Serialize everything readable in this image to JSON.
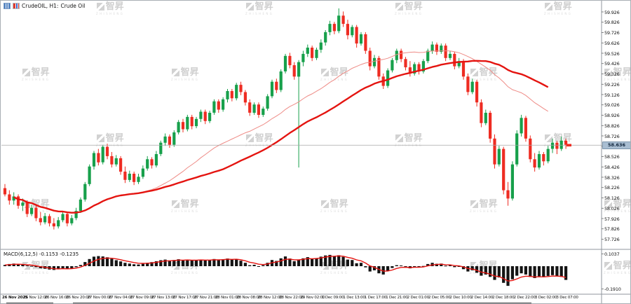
{
  "window": {
    "symbol_period": "CrudeOIL, H1:",
    "description": "Crude Oil"
  },
  "watermark": {
    "cn": "智昇",
    "en": "ZHISHENG"
  },
  "colors": {
    "bull": "#17a04b",
    "bear": "#ee2c22",
    "ma_slow": "#e41410",
    "ma_fast": "#ee8b86",
    "hist": "#141414",
    "signal": "#e41410",
    "price_line": "#a6a6a6",
    "tag_bg": "#a9bed2",
    "tag_border": "#7e97ad",
    "tag_text": "#11263d",
    "axis_text": "#111111",
    "frame": "#8f969c"
  },
  "price_axis": {
    "current": "58.636"
  },
  "macd_panel": {
    "label": "MACD(6,12,5) -0.1153 -0.1235",
    "axis_top": "0.1037",
    "axis_bottom": "-0.1910"
  },
  "chart_data": [
    {
      "type": "candlestick",
      "symbol": "CrudeOIL",
      "timeframe": "H1",
      "description": "Crude Oil",
      "last_price": "58.636",
      "ylim": [
        57.6,
        59.97
      ],
      "grid": false,
      "ma_fast_period": 30,
      "ma_slow_period": 50,
      "y_ticks": [
        "59.926",
        "59.826",
        "59.726",
        "59.626",
        "59.526",
        "59.426",
        "59.326",
        "59.226",
        "59.126",
        "59.026",
        "58.926",
        "58.826",
        "58.726",
        "58.626",
        "58.526",
        "58.426",
        "58.326",
        "58.226",
        "58.126",
        "58.026",
        "57.926",
        "57.826",
        "57.726"
      ],
      "x_ticks": [
        "26 Nov 2025",
        "26 Nov 12:00",
        "26 Nov 16:00",
        "26 Nov 20:00",
        "27 Nov 00:00",
        "27 Nov 04:00",
        "27 Nov 09:00",
        "27 Nov 13:00",
        "27 Nov 17:00",
        "27 Nov 21:00",
        "28 Nov 01:00",
        "28 Nov 08:00",
        "28 Nov 12:00",
        "28 Nov 22:00",
        "29 Nov 02:00",
        "1 Dec 09:00",
        "1 Dec 13:00",
        "1 Dec 17:00",
        "1 Dec 21:00",
        "2 Dec 01:00",
        "2 Dec 05:00",
        "2 Dec 10:00",
        "2 Dec 14:00",
        "2 Dec 18:00",
        "2 Dec 22:00",
        "3 Dec 02:00",
        "3 Dec 07:00"
      ],
      "candles": [
        [
          58.22,
          58.26,
          58.14,
          58.16
        ],
        [
          58.16,
          58.2,
          58.06,
          58.1
        ],
        [
          58.1,
          58.18,
          58.06,
          58.14
        ],
        [
          58.14,
          58.16,
          58.02,
          58.05
        ],
        [
          58.05,
          58.12,
          58.0,
          58.08
        ],
        [
          58.08,
          58.1,
          57.94,
          57.97
        ],
        [
          57.97,
          58.06,
          57.95,
          58.03
        ],
        [
          58.03,
          58.05,
          57.9,
          57.93
        ],
        [
          57.93,
          57.99,
          57.86,
          57.89
        ],
        [
          57.89,
          57.98,
          57.87,
          57.95
        ],
        [
          57.95,
          57.97,
          57.85,
          57.88
        ],
        [
          57.88,
          57.93,
          57.82,
          57.85
        ],
        [
          57.85,
          57.94,
          57.83,
          57.91
        ],
        [
          57.91,
          58.0,
          57.89,
          57.97
        ],
        [
          57.97,
          57.99,
          57.85,
          57.88
        ],
        [
          57.88,
          57.96,
          57.86,
          57.93
        ],
        [
          57.93,
          58.03,
          57.91,
          58.0
        ],
        [
          58.0,
          58.13,
          57.98,
          58.11
        ],
        [
          58.11,
          58.28,
          58.09,
          58.26
        ],
        [
          58.26,
          58.45,
          58.24,
          58.43
        ],
        [
          58.43,
          58.58,
          58.4,
          58.56
        ],
        [
          58.56,
          58.6,
          58.44,
          58.47
        ],
        [
          58.47,
          58.64,
          58.45,
          58.62
        ],
        [
          58.62,
          58.65,
          58.5,
          58.53
        ],
        [
          58.53,
          58.57,
          58.42,
          58.45
        ],
        [
          58.45,
          58.54,
          58.43,
          58.51
        ],
        [
          58.51,
          58.53,
          58.35,
          58.38
        ],
        [
          58.38,
          58.43,
          58.27,
          58.3
        ],
        [
          58.3,
          58.39,
          58.28,
          58.36
        ],
        [
          58.36,
          58.38,
          58.25,
          58.28
        ],
        [
          58.28,
          58.36,
          58.26,
          58.33
        ],
        [
          58.33,
          58.44,
          58.31,
          58.41
        ],
        [
          58.41,
          58.53,
          58.39,
          58.5
        ],
        [
          58.5,
          58.52,
          58.41,
          58.44
        ],
        [
          58.44,
          58.58,
          58.42,
          58.55
        ],
        [
          58.55,
          58.68,
          58.53,
          58.66
        ],
        [
          58.66,
          58.75,
          58.63,
          58.72
        ],
        [
          58.72,
          58.74,
          58.61,
          58.64
        ],
        [
          58.64,
          58.78,
          58.62,
          58.76
        ],
        [
          58.76,
          58.88,
          58.74,
          58.86
        ],
        [
          58.86,
          58.89,
          58.76,
          58.79
        ],
        [
          58.79,
          58.93,
          58.77,
          58.91
        ],
        [
          58.91,
          58.93,
          58.79,
          58.82
        ],
        [
          58.82,
          58.91,
          58.8,
          58.89
        ],
        [
          58.89,
          58.98,
          58.86,
          58.96
        ],
        [
          58.96,
          58.98,
          58.84,
          58.87
        ],
        [
          58.87,
          58.97,
          58.85,
          58.95
        ],
        [
          58.95,
          59.08,
          58.93,
          59.06
        ],
        [
          59.06,
          59.08,
          58.95,
          58.98
        ],
        [
          58.98,
          59.1,
          58.96,
          59.08
        ],
        [
          59.08,
          59.18,
          59.05,
          59.16
        ],
        [
          59.16,
          59.18,
          59.06,
          59.09
        ],
        [
          59.09,
          59.24,
          59.07,
          59.22
        ],
        [
          59.22,
          59.25,
          59.12,
          59.15
        ],
        [
          59.15,
          59.17,
          59.02,
          59.05
        ],
        [
          59.05,
          59.08,
          58.92,
          58.95
        ],
        [
          58.95,
          59.05,
          58.93,
          59.03
        ],
        [
          59.03,
          59.05,
          58.9,
          58.93
        ],
        [
          58.93,
          59.01,
          58.91,
          58.99
        ],
        [
          58.99,
          59.13,
          58.97,
          59.11
        ],
        [
          59.11,
          59.27,
          59.09,
          59.25
        ],
        [
          59.25,
          59.28,
          59.14,
          59.17
        ],
        [
          59.17,
          59.37,
          59.15,
          59.35
        ],
        [
          59.35,
          59.52,
          59.33,
          59.5
        ],
        [
          59.5,
          59.53,
          59.38,
          59.41
        ],
        [
          59.41,
          59.44,
          59.27,
          59.3
        ],
        [
          59.3,
          59.46,
          58.42,
          59.44
        ],
        [
          59.44,
          59.55,
          59.4,
          59.52
        ],
        [
          59.52,
          59.61,
          59.49,
          59.58
        ],
        [
          59.58,
          59.6,
          59.45,
          59.48
        ],
        [
          59.48,
          59.58,
          59.46,
          59.56
        ],
        [
          59.56,
          59.66,
          59.53,
          59.63
        ],
        [
          59.63,
          59.75,
          59.6,
          59.73
        ],
        [
          59.73,
          59.84,
          59.7,
          59.81
        ],
        [
          59.81,
          59.83,
          59.71,
          59.74
        ],
        [
          59.74,
          59.96,
          59.72,
          59.89
        ],
        [
          59.89,
          59.93,
          59.78,
          59.81
        ],
        [
          59.81,
          59.85,
          59.66,
          59.7
        ],
        [
          59.7,
          59.8,
          59.68,
          59.78
        ],
        [
          59.78,
          59.8,
          59.58,
          59.62
        ],
        [
          59.62,
          59.73,
          59.6,
          59.71
        ],
        [
          59.71,
          59.73,
          59.52,
          59.55
        ],
        [
          59.55,
          59.58,
          59.36,
          59.4
        ],
        [
          59.4,
          59.51,
          59.38,
          59.48
        ],
        [
          59.48,
          59.5,
          59.27,
          59.3
        ],
        [
          59.3,
          59.33,
          59.18,
          59.21
        ],
        [
          59.21,
          59.38,
          59.19,
          59.36
        ],
        [
          59.36,
          59.48,
          59.34,
          59.46
        ],
        [
          59.46,
          59.57,
          59.43,
          59.55
        ],
        [
          59.55,
          59.57,
          59.44,
          59.47
        ],
        [
          59.47,
          59.49,
          59.36,
          59.39
        ],
        [
          59.39,
          59.45,
          59.3,
          59.33
        ],
        [
          59.33,
          59.44,
          59.31,
          59.42
        ],
        [
          59.42,
          59.44,
          59.32,
          59.35
        ],
        [
          59.35,
          59.47,
          59.33,
          59.45
        ],
        [
          59.45,
          59.57,
          59.43,
          59.55
        ],
        [
          59.55,
          59.64,
          59.52,
          59.61
        ],
        [
          59.61,
          59.63,
          59.51,
          59.54
        ],
        [
          59.54,
          59.62,
          59.52,
          59.6
        ],
        [
          59.6,
          59.62,
          59.45,
          59.48
        ],
        [
          59.48,
          59.55,
          59.46,
          59.52
        ],
        [
          59.52,
          59.54,
          59.37,
          59.4
        ],
        [
          59.4,
          59.48,
          59.38,
          59.45
        ],
        [
          59.45,
          59.47,
          59.27,
          59.3
        ],
        [
          59.3,
          59.33,
          59.12,
          59.15
        ],
        [
          59.15,
          59.28,
          59.13,
          59.25
        ],
        [
          59.25,
          59.27,
          59.01,
          59.05
        ],
        [
          59.05,
          59.08,
          58.81,
          58.85
        ],
        [
          58.85,
          58.98,
          58.83,
          58.95
        ],
        [
          58.95,
          58.97,
          58.66,
          58.7
        ],
        [
          58.7,
          58.74,
          58.41,
          58.45
        ],
        [
          58.45,
          58.63,
          58.43,
          58.6
        ],
        [
          58.6,
          58.62,
          58.16,
          58.2
        ],
        [
          58.2,
          58.28,
          58.05,
          58.12
        ],
        [
          58.12,
          58.48,
          58.1,
          58.45
        ],
        [
          58.45,
          58.78,
          58.43,
          58.75
        ],
        [
          58.75,
          58.93,
          58.72,
          58.9
        ],
        [
          58.9,
          58.92,
          58.67,
          58.7
        ],
        [
          58.7,
          58.73,
          58.47,
          58.5
        ],
        [
          58.5,
          58.56,
          58.38,
          58.42
        ],
        [
          58.42,
          58.58,
          58.4,
          58.55
        ],
        [
          58.55,
          58.57,
          58.44,
          58.48
        ],
        [
          58.48,
          58.63,
          58.46,
          58.6
        ],
        [
          58.6,
          58.7,
          58.56,
          58.66
        ],
        [
          58.66,
          58.68,
          58.55,
          58.6
        ],
        [
          58.6,
          58.72,
          58.58,
          58.68
        ],
        [
          58.68,
          58.7,
          58.6,
          58.64
        ]
      ]
    },
    {
      "type": "bar",
      "name": "MACD histogram",
      "label": "MACD(6,12,5) -0.1153 -0.1235",
      "last_main": -0.1153,
      "last_signal": -0.1235,
      "signal_period": 5,
      "ylim": [
        -0.191,
        0.1037
      ],
      "y_ticks": [
        "0.1037",
        "-0.1910"
      ],
      "values": [
        0.01,
        0.018,
        0.022,
        0.018,
        0.012,
        0.006,
        0.002,
        -0.008,
        -0.018,
        -0.022,
        -0.028,
        -0.032,
        -0.026,
        -0.018,
        -0.024,
        -0.018,
        -0.008,
        0.01,
        0.035,
        0.06,
        0.08,
        0.085,
        0.082,
        0.075,
        0.062,
        0.05,
        0.04,
        0.028,
        0.022,
        0.016,
        0.014,
        0.02,
        0.028,
        0.034,
        0.042,
        0.05,
        0.055,
        0.048,
        0.052,
        0.058,
        0.05,
        0.055,
        0.048,
        0.05,
        0.056,
        0.048,
        0.052,
        0.06,
        0.052,
        0.058,
        0.064,
        0.056,
        0.06,
        0.046,
        0.028,
        0.008,
        0.012,
        -0.002,
        0.008,
        0.028,
        0.052,
        0.044,
        0.066,
        0.082,
        0.064,
        0.042,
        0.052,
        0.066,
        0.076,
        0.06,
        0.068,
        0.08,
        0.09,
        0.095,
        0.085,
        0.092,
        0.078,
        0.055,
        0.052,
        0.025,
        0.028,
        -0.01,
        -0.045,
        -0.035,
        -0.06,
        -0.07,
        -0.04,
        -0.015,
        0.008,
        0.006,
        -0.006,
        -0.018,
        -0.004,
        -0.01,
        0.002,
        0.018,
        0.028,
        0.02,
        0.022,
        0.004,
        0.008,
        -0.008,
        -0.002,
        -0.025,
        -0.045,
        -0.035,
        -0.055,
        -0.08,
        -0.07,
        -0.09,
        -0.115,
        -0.095,
        -0.14,
        -0.165,
        -0.11,
        -0.08,
        -0.06,
        -0.07,
        -0.09,
        -0.1,
        -0.085,
        -0.092,
        -0.082,
        -0.075,
        -0.085,
        -0.09,
        -0.115
      ]
    }
  ]
}
